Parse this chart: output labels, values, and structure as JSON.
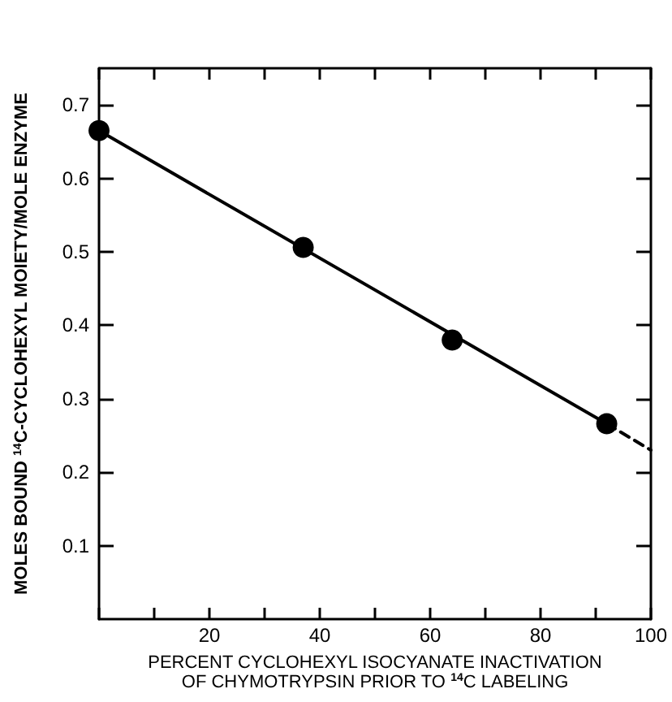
{
  "chart_data": {
    "type": "scatter",
    "xlabel": "PERCENT CYCLOHEXYL ISOCYANATE INACTIVATION\nOF CHYMOTRYPSIN PRIOR TO $^{14}$C LABELING",
    "ylabel": "MOLES BOUND $^{14}$C-CYCLOHEXYL MOIETY/MOLE ENZYME",
    "xlim": [
      0,
      100
    ],
    "xticks": [
      {
        "value": 0,
        "label": null
      },
      {
        "value": 10,
        "label": null
      },
      20,
      {
        "value": 30,
        "label": null
      },
      40,
      {
        "value": 50,
        "label": null
      },
      60,
      {
        "value": 70,
        "label": null
      },
      80,
      {
        "value": 90,
        "label": null
      },
      100
    ],
    "ylim": [
      0,
      0.75
    ],
    "yticks": [
      0.1,
      0.2,
      0.3,
      0.4,
      0.5,
      0.6,
      0.7
    ],
    "grid": false,
    "marker": "circle",
    "series": [
      {
        "type": "line",
        "color": "#000000",
        "line_style": "solid",
        "marker": "none",
        "x": [
          0,
          92
        ],
        "values": [
          0.665,
          0.266
        ]
      },
      {
        "type": "line",
        "color": "#000000",
        "line_style": "dashed",
        "marker": "none",
        "x": [
          92,
          100
        ],
        "values": [
          0.266,
          0.23
        ]
      },
      {
        "type": "scatter",
        "color": "#000000",
        "x": [
          0,
          37,
          64,
          92
        ],
        "values": [
          0.665,
          0.506,
          0.38,
          0.266
        ]
      }
    ]
  }
}
